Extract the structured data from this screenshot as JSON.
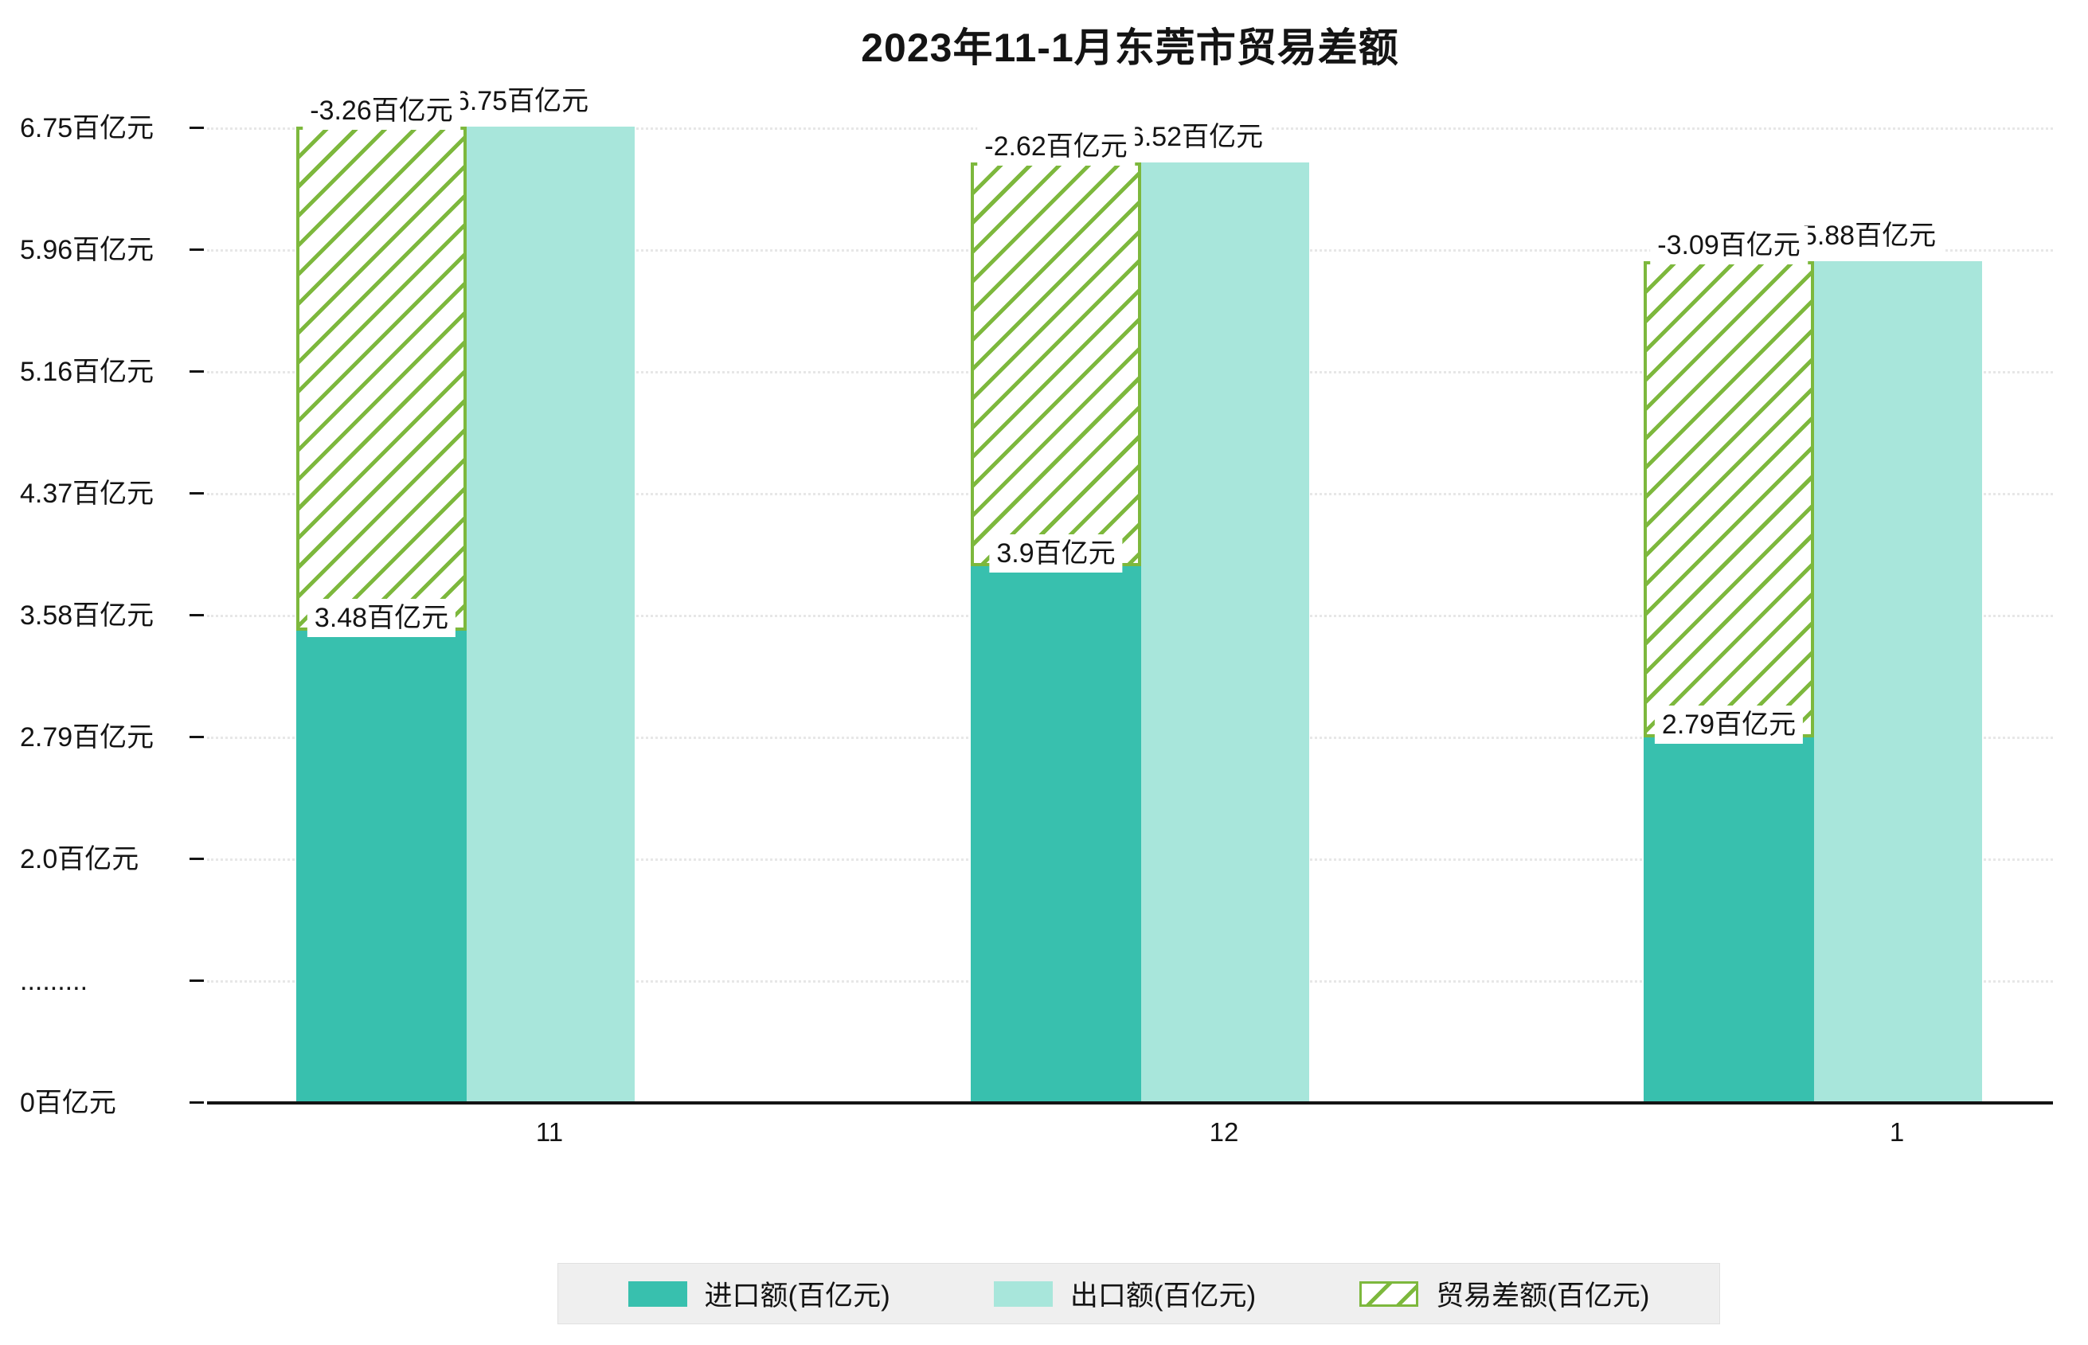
{
  "chart_data": {
    "type": "bar",
    "title": "2023年11-1月东莞市贸易差额",
    "categories": [
      "11",
      "12",
      "1"
    ],
    "series": [
      {
        "name": "进口额(百亿元)",
        "values": [
          3.48,
          3.9,
          2.79
        ],
        "bar_labels": [
          "3.48百亿元",
          "3.9百亿元",
          "2.79百亿元"
        ],
        "style": "solid"
      },
      {
        "name": "出口额(百亿元)",
        "values": [
          6.75,
          6.52,
          5.88
        ],
        "bar_labels": [
          "6.75百亿元",
          "6.52百亿元",
          "5.88百亿元"
        ],
        "style": "solid"
      },
      {
        "name": "贸易差额(百亿元)",
        "values": [
          -3.26,
          -2.62,
          -3.09
        ],
        "bar_labels": [
          "-3.26百亿元",
          "-2.62百亿元",
          "-3.09百亿元"
        ],
        "style": "hatched"
      }
    ],
    "y_axis": {
      "unit": "百亿元",
      "tick_labels": [
        "0百亿元",
        ".........",
        "2.0百亿元",
        "2.79百亿元",
        "3.58百亿元",
        "4.37百亿元",
        "5.16百亿元",
        "5.96百亿元",
        "6.75百亿元"
      ],
      "tick_values": [
        0,
        null,
        2.0,
        2.79,
        3.58,
        4.37,
        5.16,
        5.96,
        6.75
      ],
      "axis_break": true,
      "ylim": [
        0,
        6.75
      ]
    },
    "grid": "dotted-horizontal",
    "legend_position": "bottom",
    "colors": {
      "import": "#38c0ae",
      "export": "#a8e6db",
      "balance": "#7db83d",
      "text": "#141414",
      "grid": "#e7e7e7",
      "label_bg": "#ffffff",
      "legend_bg": "#efefef"
    }
  }
}
